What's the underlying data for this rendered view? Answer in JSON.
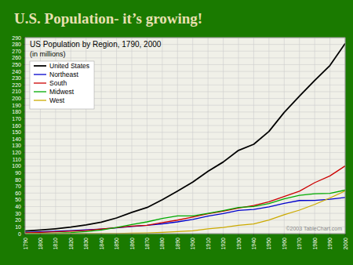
{
  "chart_data": {
    "type": "line",
    "title": "U.S. Population- it’s growing!",
    "subtitle": "US Population by Region, 1790, 2000",
    "annotations": [
      "(in millions)",
      "©2003 TableChart.com"
    ],
    "x": [
      1790,
      1800,
      1810,
      1820,
      1830,
      1840,
      1850,
      1860,
      1870,
      1880,
      1890,
      1900,
      1910,
      1920,
      1930,
      1940,
      1950,
      1960,
      1970,
      1980,
      1990,
      2000
    ],
    "series": [
      {
        "name": "United States",
        "color": "#000000",
        "values": [
          3.9,
          5.3,
          7.2,
          9.6,
          12.9,
          17.1,
          23.2,
          31.4,
          38.6,
          50.2,
          63.0,
          76.2,
          92.2,
          106.0,
          123.2,
          132.2,
          151.3,
          179.3,
          203.3,
          226.5,
          248.7,
          281.4
        ]
      },
      {
        "name": "Northeast",
        "color": "#0000cc",
        "values": [
          1.9,
          2.6,
          3.5,
          4.4,
          5.5,
          6.8,
          8.6,
          10.6,
          12.3,
          14.5,
          17.4,
          21.0,
          25.9,
          29.7,
          34.4,
          35.9,
          39.5,
          44.7,
          49.0,
          49.1,
          50.8,
          53.6
        ]
      },
      {
        "name": "South",
        "color": "#cc0000",
        "values": [
          1.4,
          1.9,
          2.7,
          3.6,
          4.9,
          6.9,
          8.9,
          11.1,
          12.3,
          16.5,
          20.0,
          24.5,
          29.4,
          33.1,
          37.9,
          41.7,
          47.2,
          54.9,
          62.8,
          75.4,
          85.4,
          100.2
        ]
      },
      {
        "name": "Midwest",
        "color": "#00aa00",
        "values": [
          0.0,
          0.3,
          0.8,
          1.6,
          3.0,
          5.4,
          9.1,
          13.4,
          17.4,
          22.4,
          26.3,
          26.3,
          29.9,
          34.0,
          38.6,
          40.1,
          44.5,
          51.6,
          56.6,
          58.9,
          59.7,
          64.4
        ]
      },
      {
        "name": "West",
        "color": "#ccaa00",
        "values": [
          0.0,
          0.0,
          0.0,
          0.0,
          0.0,
          0.1,
          0.2,
          0.6,
          1.0,
          1.8,
          3.1,
          4.3,
          7.1,
          9.2,
          12.3,
          14.4,
          20.2,
          28.1,
          34.8,
          43.2,
          52.8,
          63.2
        ]
      }
    ],
    "xlim": [
      1790,
      2000
    ],
    "xticks": [
      1790,
      1800,
      1810,
      1820,
      1830,
      1840,
      1850,
      1860,
      1870,
      1880,
      1890,
      1900,
      1910,
      1920,
      1930,
      1940,
      1950,
      1960,
      1970,
      1980,
      1990,
      2000
    ],
    "ylim": [
      0,
      290
    ],
    "yticks": [
      0,
      10,
      20,
      30,
      40,
      50,
      60,
      70,
      80,
      90,
      100,
      110,
      120,
      130,
      140,
      150,
      160,
      170,
      180,
      190,
      200,
      210,
      220,
      230,
      240,
      250,
      260,
      270,
      280,
      290
    ],
    "grid": true,
    "legend": "upper left"
  }
}
